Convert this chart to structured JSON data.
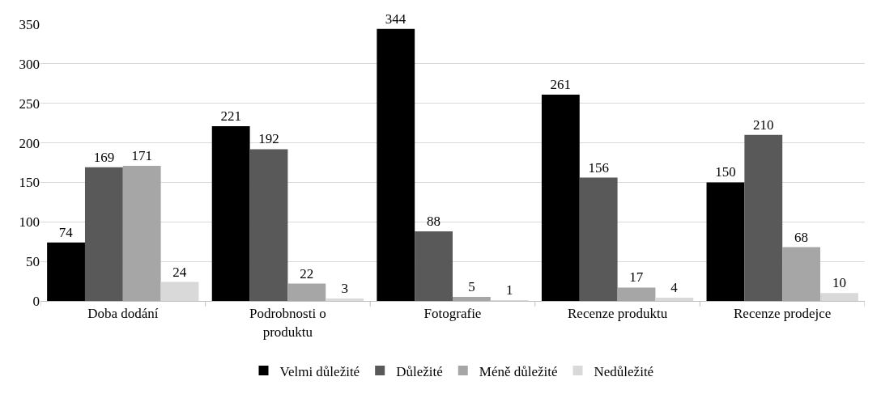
{
  "chart_data": {
    "type": "bar",
    "categories": [
      "Doba dodání",
      "Podrobnosti o produktu",
      "Fotografie",
      "Recenze produktu",
      "Recenze prodejce"
    ],
    "series": [
      {
        "name": "Velmi důležité",
        "color": "#000000",
        "values": [
          74,
          221,
          344,
          261,
          150
        ]
      },
      {
        "name": "Důležité",
        "color": "#595959",
        "values": [
          169,
          192,
          88,
          156,
          210
        ]
      },
      {
        "name": "Méně důležité",
        "color": "#a6a6a6",
        "values": [
          171,
          22,
          5,
          17,
          68
        ]
      },
      {
        "name": "Nedůležité",
        "color": "#d9d9d9",
        "values": [
          24,
          3,
          1,
          4,
          10
        ]
      }
    ],
    "ylim": [
      0,
      350
    ],
    "yticks": [
      0,
      50,
      100,
      150,
      200,
      250,
      300,
      350
    ],
    "grid": "y",
    "legend": "bottom",
    "data_labels": true
  }
}
